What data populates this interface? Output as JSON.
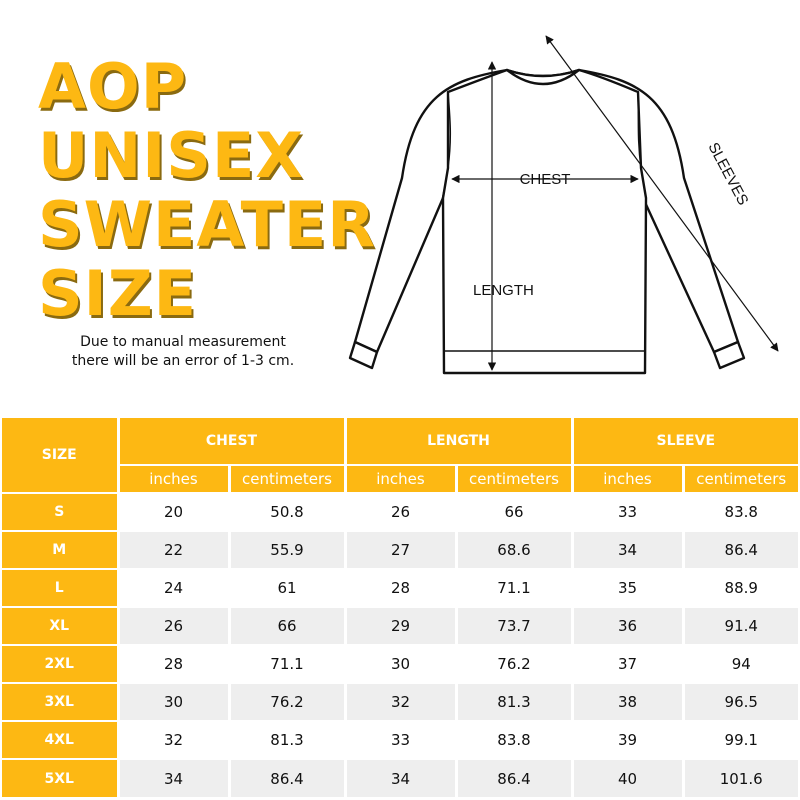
{
  "title_lines": [
    "AOP",
    "UNISEX",
    "SWEATER",
    "SIZE"
  ],
  "note_lines": [
    "Due to manual measurement",
    "there will be an error of 1-3 cm."
  ],
  "diagram": {
    "chest_label": "CHEST",
    "length_label": "LENGTH",
    "sleeves_label": "SLEEVES"
  },
  "colors": {
    "accent": "#FDB813",
    "row_alt": "#EEEEEE",
    "text": "#111111"
  },
  "table": {
    "size_header": "SIZE",
    "groups": [
      "CHEST",
      "LENGTH",
      "SLEEVE"
    ],
    "subheaders": [
      "inches",
      "centimeters",
      "inches",
      "centimeters",
      "inches",
      "centimeters"
    ],
    "rows": [
      [
        "S",
        "20",
        "50.8",
        "26",
        "66",
        "33",
        "83.8"
      ],
      [
        "M",
        "22",
        "55.9",
        "27",
        "68.6",
        "34",
        "86.4"
      ],
      [
        "L",
        "24",
        "61",
        "28",
        "71.1",
        "35",
        "88.9"
      ],
      [
        "XL",
        "26",
        "66",
        "29",
        "73.7",
        "36",
        "91.4"
      ],
      [
        "2XL",
        "28",
        "71.1",
        "30",
        "76.2",
        "37",
        "94"
      ],
      [
        "3XL",
        "30",
        "76.2",
        "32",
        "81.3",
        "38",
        "96.5"
      ],
      [
        "4XL",
        "32",
        "81.3",
        "33",
        "83.8",
        "39",
        "99.1"
      ],
      [
        "5XL",
        "34",
        "86.4",
        "34",
        "86.4",
        "40",
        "101.6"
      ]
    ]
  }
}
